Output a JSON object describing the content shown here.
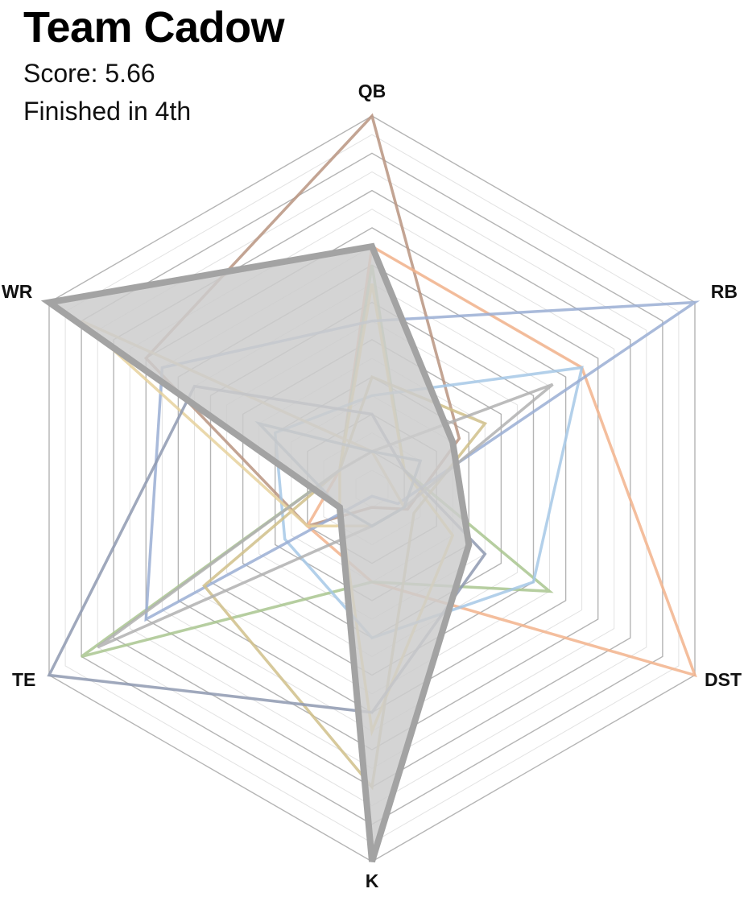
{
  "header": {
    "team_name": "Team Cadow",
    "score_text": "Score: 5.66",
    "finish_text": "Finished in 4th"
  },
  "chart_data": {
    "type": "radar",
    "axes": [
      "QB",
      "RB",
      "DST",
      "K",
      "TE",
      "WR"
    ],
    "rmax": 10,
    "grid": true,
    "gridlines": 20,
    "highlight_color": "#a3a3a3",
    "highlight_fill": "#cccccc",
    "series": [
      {
        "color": "#b89480",
        "values": [
          10,
          2.7,
          1.1,
          0.5,
          2.0,
          7.0
        ],
        "highlight": false
      },
      {
        "color": "#f2b38c",
        "values": [
          6.5,
          6.5,
          10,
          2.5,
          2.0,
          1.0
        ],
        "highlight": false
      },
      {
        "color": "#a9c68f",
        "values": [
          6.0,
          1.0,
          5.5,
          2.5,
          9.0,
          1.0
        ],
        "highlight": false
      },
      {
        "color": "#f8d97a",
        "values": [
          5.5,
          1.0,
          2.5,
          6.5,
          1.0,
          1.0
        ],
        "highlight": false
      },
      {
        "color": "#a6c8e6",
        "values": [
          2.5,
          6.5,
          5.0,
          4.0,
          2.7,
          3.0
        ],
        "highlight": false
      },
      {
        "color": "#9aaed4",
        "values": [
          4.5,
          10,
          0.8,
          0.2,
          7.0,
          6.5
        ],
        "highlight": false
      },
      {
        "color": "#d0c08a",
        "values": [
          3.0,
          3.5,
          1.3,
          8.0,
          5.2,
          1.0
        ],
        "highlight": false
      },
      {
        "color": "#e6d19c",
        "values": [
          1.0,
          0.5,
          1.0,
          1.0,
          2.0,
          9.0
        ],
        "highlight": false
      },
      {
        "color": "#8e99b0",
        "values": [
          2.0,
          1.0,
          3.5,
          6.0,
          10,
          5.5
        ],
        "highlight": false
      },
      {
        "color": "#b0b0b0",
        "values": [
          1.0,
          5.6,
          1.0,
          1.0,
          8.5,
          1.0
        ],
        "highlight": false
      },
      {
        "color": "#8fa6bd",
        "values": [
          1.0,
          1.5,
          1.0,
          1.0,
          1.0,
          3.5
        ],
        "highlight": false
      },
      {
        "color": "#a3a3a3",
        "values": [
          6.5,
          2.5,
          3.0,
          10,
          1.0,
          10
        ],
        "highlight": true
      }
    ]
  }
}
